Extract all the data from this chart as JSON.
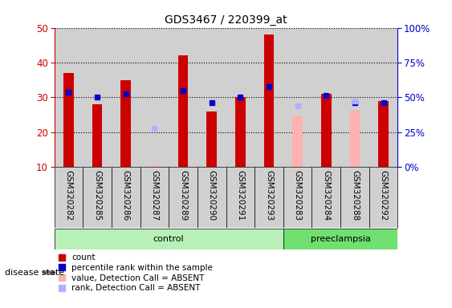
{
  "title": "GDS3467 / 220399_at",
  "samples": [
    "GSM320282",
    "GSM320285",
    "GSM320286",
    "GSM320287",
    "GSM320289",
    "GSM320290",
    "GSM320291",
    "GSM320293",
    "GSM320283",
    "GSM320284",
    "GSM320288",
    "GSM320292"
  ],
  "groups": [
    "control",
    "control",
    "control",
    "control",
    "control",
    "control",
    "control",
    "control",
    "preeclampsia",
    "preeclampsia",
    "preeclampsia",
    "preeclampsia"
  ],
  "count_values": [
    37,
    28,
    35,
    null,
    42,
    26,
    30,
    48,
    null,
    31,
    null,
    29
  ],
  "rank_values": [
    31.5,
    30.0,
    31.0,
    null,
    32.0,
    28.5,
    30.0,
    33.0,
    null,
    30.5,
    28.5,
    28.5
  ],
  "absent_value": [
    null,
    null,
    null,
    10.5,
    null,
    null,
    null,
    null,
    24.5,
    null,
    26.5,
    null
  ],
  "absent_rank": [
    null,
    null,
    null,
    21.0,
    null,
    null,
    null,
    null,
    27.5,
    null,
    29.0,
    null
  ],
  "ylim_left": [
    10,
    50
  ],
  "ylim_right": [
    0,
    100
  ],
  "yticks_left": [
    10,
    20,
    30,
    40,
    50
  ],
  "yticks_right": [
    0,
    25,
    50,
    75,
    100
  ],
  "ytick_labels_right": [
    "0%",
    "25%",
    "50%",
    "75%",
    "100%"
  ],
  "color_count": "#cc0000",
  "color_rank": "#0000cc",
  "color_absent_value": "#ffb0b0",
  "color_absent_rank": "#b0b0ff",
  "color_control_bg": "#b8f0b8",
  "color_preeclampsia_bg": "#70e070",
  "color_sample_bg": "#d0d0d0",
  "bar_width": 0.35,
  "marker_size": 5,
  "grid_color": "black",
  "grid_linestyle": "dotted",
  "n_control": 8,
  "n_preeclampsia": 4
}
